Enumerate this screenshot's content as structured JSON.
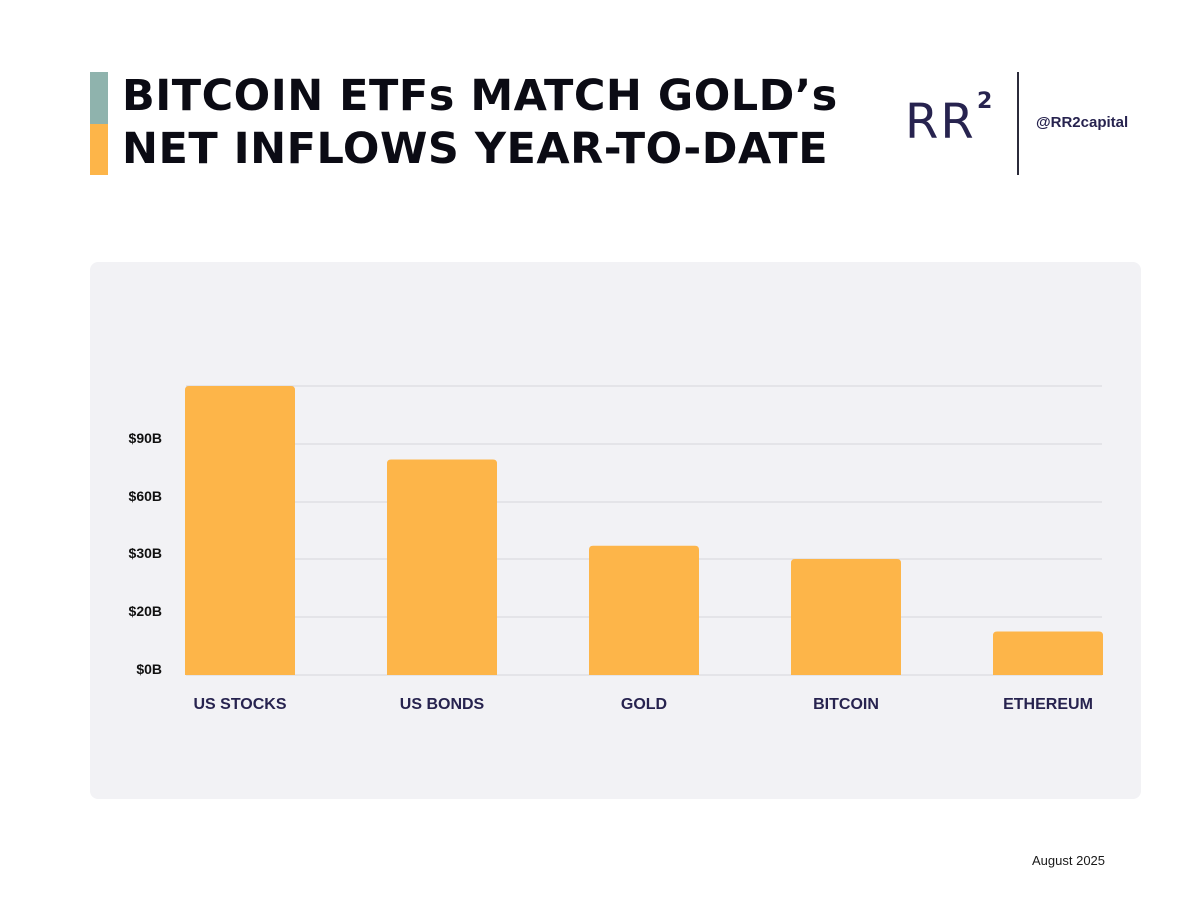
{
  "header": {
    "title_line1": "BITCOIN ETFs MATCH GOLD’s",
    "title_line2": "NET INFLOWS YEAR-TO-DATE",
    "logo_text": "RR",
    "logo_superscript": "2",
    "handle": "@RR2capital"
  },
  "footer": {
    "date": "August 2025"
  },
  "colors": {
    "accent_top": "#8fb3ad",
    "accent_bottom": "#fdb549",
    "bar": "#fdb549",
    "axis_label": "#111111",
    "category_label": "#27234f",
    "grid": "#d6d6dc"
  },
  "chart_data": {
    "type": "bar",
    "title": "",
    "xlabel": "",
    "ylabel": "",
    "categories": [
      "US STOCKS",
      "US BONDS",
      "GOLD",
      "BITCOIN",
      "ETHEREUM"
    ],
    "values": [
      150,
      82,
      37,
      30,
      15
    ],
    "y_ticks": [
      {
        "value": 0,
        "label": "$0B"
      },
      {
        "value": 20,
        "label": "$20B"
      },
      {
        "value": 30,
        "label": "$30B"
      },
      {
        "value": 60,
        "label": "$60B"
      },
      {
        "value": 90,
        "label": "$90B"
      }
    ],
    "ylim": [
      0,
      150
    ],
    "grid": true,
    "legend": "none"
  }
}
